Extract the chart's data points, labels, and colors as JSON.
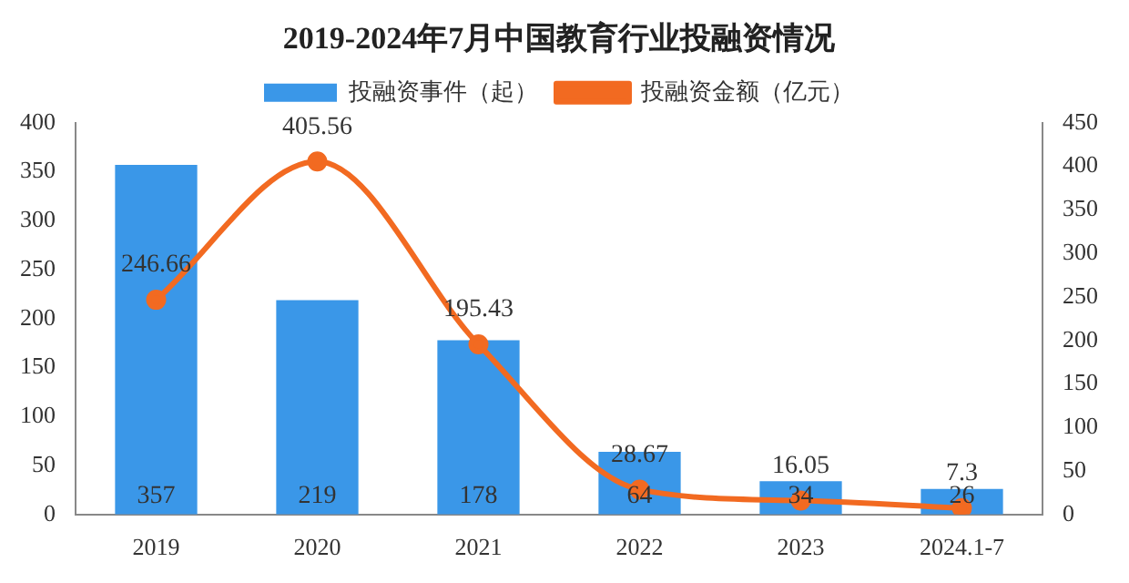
{
  "chart_data": {
    "type": "bar",
    "title": "2019-2024年7月中国教育行业投融资情况",
    "categories": [
      "2019",
      "2020",
      "2021",
      "2022",
      "2023",
      "2024.1-7"
    ],
    "series": [
      {
        "name": "投融资事件（起）",
        "color": "#3a97e8",
        "values": [
          357,
          219,
          178,
          64,
          34,
          26
        ]
      },
      {
        "name": "投融资金额（亿元）",
        "type": "line",
        "axis": "y2",
        "color": "#f26a21",
        "values": [
          246.66,
          405.56,
          195.43,
          28.67,
          16.05,
          7.3
        ]
      }
    ],
    "ylim": [
      0,
      400
    ],
    "yticks": [
      0,
      50,
      100,
      150,
      200,
      250,
      300,
      350,
      400
    ],
    "y2lim": [
      0,
      450
    ],
    "y2ticks": [
      0,
      50,
      100,
      150,
      200,
      250,
      300,
      350,
      400,
      450
    ],
    "data_labels": true,
    "legend": "top",
    "grid": false,
    "marker": "circle"
  }
}
